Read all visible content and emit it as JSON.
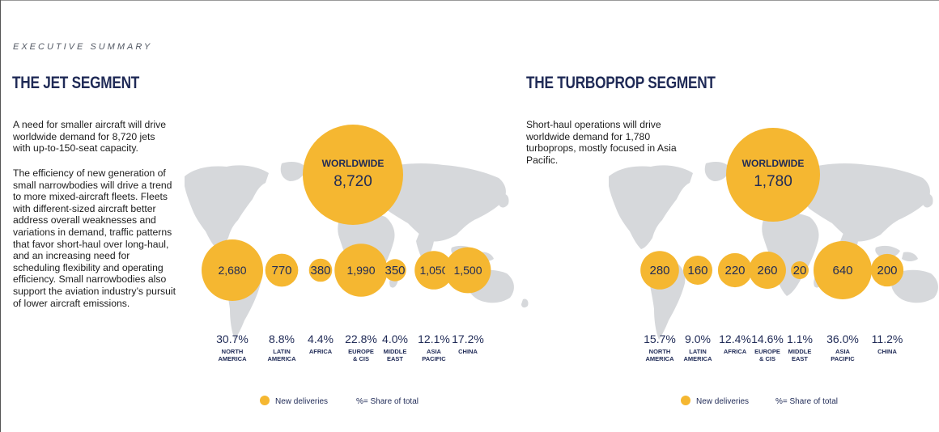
{
  "header": {
    "eyebrow": "EXECUTIVE SUMMARY"
  },
  "jet": {
    "title": "THE JET SEGMENT",
    "paragraph1": "A need for smaller aircraft will drive worldwide demand for 8,720 jets with up-to-150-seat capacity.",
    "paragraph2": "The efficiency of new generation of small narrowbodies will drive a trend to more mixed-aircraft fleets. Fleets with different-sized aircraft better address overall weaknesses and variations in demand, traffic patterns that favor short-haul over long-haul, and an increasing need for scheduling flexibility and operating efficiency. Small narrowbodies also support the aviation industry’s pursuit of lower aircraft emissions."
  },
  "turboprop": {
    "title": "THE TURBOPROP SEGMENT",
    "paragraph": "Short-haul operations will drive worldwide demand for 1,780 turboprops, mostly focused in Asia Pacific."
  },
  "colors": {
    "bubble": "#F5B731",
    "navy": "#1f2a56",
    "map": "#d6d8db"
  },
  "chart_data": [
    {
      "type": "bubble",
      "title": "THE JET SEGMENT",
      "worldwide": {
        "label": "WORLDWIDE",
        "value": "8,720",
        "numeric": 8720
      },
      "regions": [
        {
          "key": "na",
          "name": [
            "NORTH",
            "AMERICA"
          ],
          "deliveries": 2680,
          "label": "2,680",
          "share": "30.7%"
        },
        {
          "key": "la",
          "name": [
            "LATIN",
            "AMERICA"
          ],
          "deliveries": 770,
          "label": "770",
          "share": "8.8%"
        },
        {
          "key": "af",
          "name": [
            "AFRICA"
          ],
          "deliveries": 380,
          "label": "380",
          "share": "4.4%"
        },
        {
          "key": "eu",
          "name": [
            "EUROPE",
            "& CIS"
          ],
          "deliveries": 1990,
          "label": "1,990",
          "share": "22.8%"
        },
        {
          "key": "me",
          "name": [
            "MIDDLE",
            "EAST"
          ],
          "deliveries": 350,
          "label": "350",
          "share": "4.0%"
        },
        {
          "key": "ap",
          "name": [
            "ASIA",
            "PACIFIC"
          ],
          "deliveries": 1050,
          "label": "1,050",
          "share": "12.1%"
        },
        {
          "key": "cn",
          "name": [
            "CHINA"
          ],
          "deliveries": 1500,
          "label": "1,500",
          "share": "17.2%"
        }
      ],
      "legend": {
        "deliveries": "New deliveries",
        "share": "%= Share of total"
      }
    },
    {
      "type": "bubble",
      "title": "THE TURBOPROP SEGMENT",
      "worldwide": {
        "label": "WORLDWIDE",
        "value": "1,780",
        "numeric": 1780
      },
      "regions": [
        {
          "key": "na",
          "name": [
            "NORTH",
            "AMERICA"
          ],
          "deliveries": 280,
          "label": "280",
          "share": "15.7%"
        },
        {
          "key": "la",
          "name": [
            "LATIN",
            "AMERICA"
          ],
          "deliveries": 160,
          "label": "160",
          "share": "9.0%"
        },
        {
          "key": "af",
          "name": [
            "AFRICA"
          ],
          "deliveries": 220,
          "label": "220",
          "share": "12.4%"
        },
        {
          "key": "eu",
          "name": [
            "EUROPE",
            "& CIS"
          ],
          "deliveries": 260,
          "label": "260",
          "share": "14.6%"
        },
        {
          "key": "me",
          "name": [
            "MIDDLE",
            "EAST"
          ],
          "deliveries": 20,
          "label": "20",
          "share": "1.1%"
        },
        {
          "key": "ap",
          "name": [
            "ASIA",
            "PACIFIC"
          ],
          "deliveries": 640,
          "label": "640",
          "share": "36.0%"
        },
        {
          "key": "cn",
          "name": [
            "CHINA"
          ],
          "deliveries": 200,
          "label": "200",
          "share": "11.2%"
        }
      ],
      "legend": {
        "deliveries": "New deliveries",
        "share": "%= Share of total"
      }
    }
  ]
}
